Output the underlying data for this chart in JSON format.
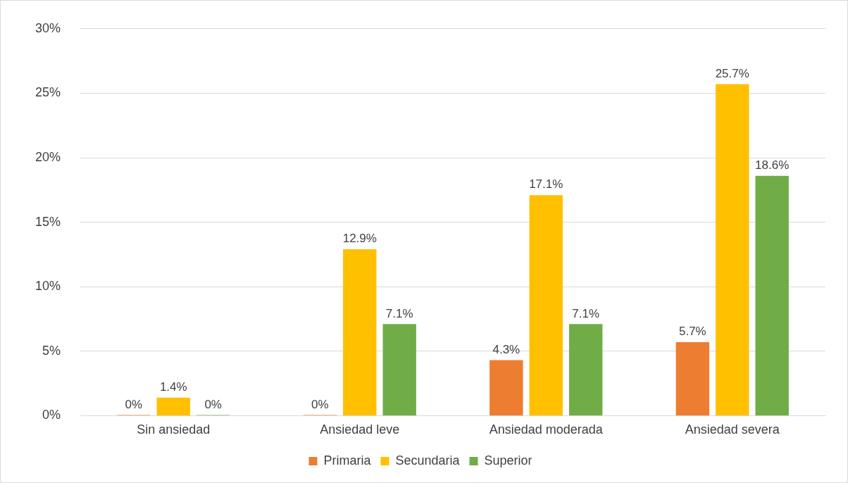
{
  "chart_data": {
    "type": "bar",
    "categories": [
      "Sin ansiedad",
      "Ansiedad leve",
      "Ansiedad moderada",
      "Ansiedad severa"
    ],
    "series": [
      {
        "name": "Primaria",
        "color": "#ed7d31",
        "values": [
          0,
          0,
          4.3,
          5.7
        ],
        "value_labels": [
          "0%",
          "0%",
          "4.3%",
          "5.7%"
        ]
      },
      {
        "name": "Secundaria",
        "color": "#ffc000",
        "values": [
          1.4,
          12.9,
          17.1,
          25.7
        ],
        "value_labels": [
          "1.4%",
          "12.9%",
          "17.1%",
          "25.7%"
        ]
      },
      {
        "name": "Superior",
        "color": "#70ad47",
        "values": [
          0,
          7.1,
          7.1,
          18.6
        ],
        "value_labels": [
          "0%",
          "7.1%",
          "7.1%",
          "18.6%"
        ]
      }
    ],
    "ylim": [
      0,
      30
    ],
    "yticks": [
      {
        "value": 0,
        "label": "0%"
      },
      {
        "value": 5,
        "label": "5%"
      },
      {
        "value": 10,
        "label": "10%"
      },
      {
        "value": 15,
        "label": "15%"
      },
      {
        "value": 20,
        "label": "20%"
      },
      {
        "value": 25,
        "label": "25%"
      },
      {
        "value": 30,
        "label": "30%"
      }
    ],
    "grid": "y",
    "legend": "bottom"
  }
}
